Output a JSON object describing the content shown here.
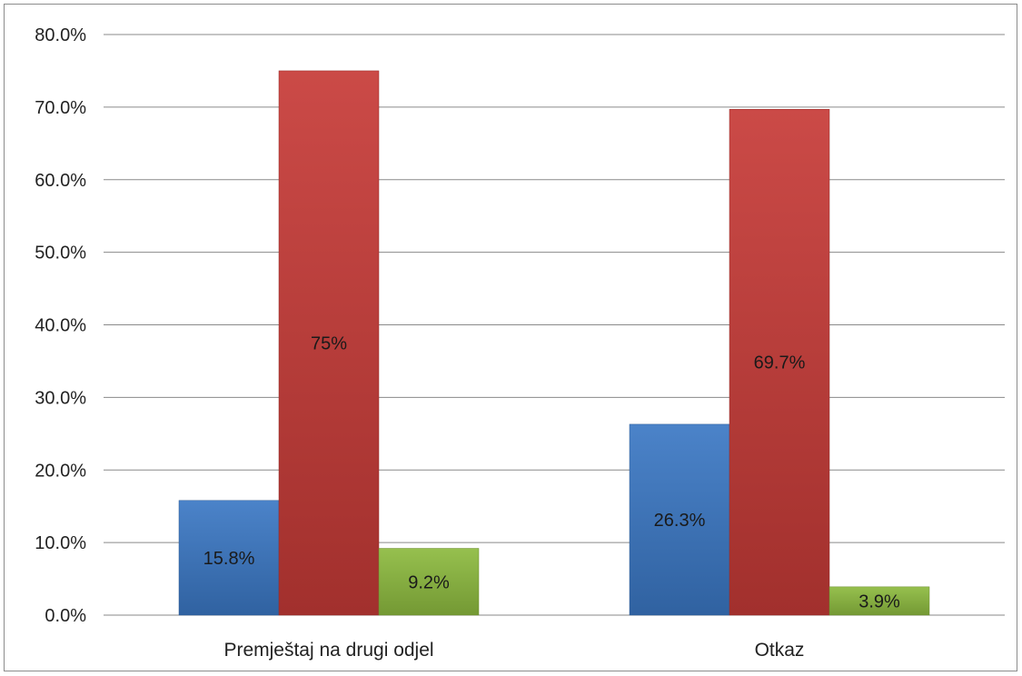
{
  "chart_data": {
    "type": "bar",
    "categories": [
      "Premještaj na drugi odjel",
      "Otkaz"
    ],
    "series": [
      {
        "values": [
          15.8,
          26.3
        ],
        "labels": [
          "15.8%",
          "26.3%"
        ],
        "color": "#3b78c4"
      },
      {
        "values": [
          75.0,
          69.7
        ],
        "labels": [
          "75%",
          "69.7%"
        ],
        "color": "#c63a37"
      },
      {
        "values": [
          9.2,
          3.9
        ],
        "labels": [
          "9.2%",
          "3.9%"
        ],
        "color": "#8dba3f"
      }
    ],
    "ylim": [
      0,
      80
    ],
    "yticks": [
      0,
      10,
      20,
      30,
      40,
      50,
      60,
      70,
      80
    ],
    "ytick_labels": [
      "0.0%",
      "10.0%",
      "20.0%",
      "30.0%",
      "40.0%",
      "50.0%",
      "60.0%",
      "70.0%",
      "80.0%"
    ],
    "grid": true,
    "legend": "none"
  }
}
